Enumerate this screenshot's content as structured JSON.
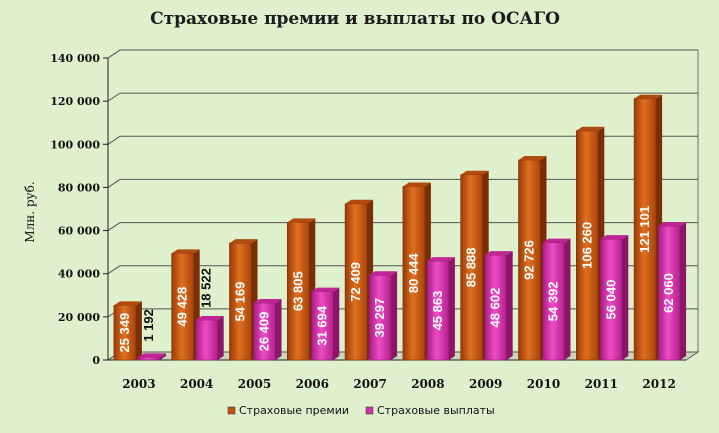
{
  "chart_data": {
    "type": "bar",
    "title": "Страховые премии и выплаты по ОСАГО",
    "ylabel": "Млн. руб.",
    "xlabel": "",
    "categories": [
      "2003",
      "2004",
      "2005",
      "2006",
      "2007",
      "2008",
      "2009",
      "2010",
      "2011",
      "2012"
    ],
    "series": [
      {
        "name": "Страховые премии",
        "color": "#c4520f",
        "values": [
          25349,
          49428,
          54169,
          63805,
          72409,
          80444,
          85888,
          92726,
          106260,
          121101
        ],
        "labels": [
          "25 349",
          "49 428",
          "54 169",
          "63 805",
          "72 409",
          "80 444",
          "85 888",
          "92 726",
          "106 260",
          "121 101"
        ]
      },
      {
        "name": "Страховые выплаты",
        "color": "#d42fa8",
        "values": [
          1192,
          18522,
          26409,
          31694,
          39297,
          45863,
          48602,
          54392,
          56040,
          62060
        ],
        "labels": [
          "1 192",
          "18 522",
          "26 409",
          "31 694",
          "39 297",
          "45 863",
          "48 602",
          "54 392",
          "56 040",
          "62 060"
        ]
      }
    ],
    "ylim": [
      0,
      140000
    ],
    "yticks": [
      0,
      20000,
      40000,
      60000,
      80000,
      100000,
      120000,
      140000
    ],
    "ytick_labels": [
      "0",
      "20 000",
      "40 000",
      "60 000",
      "80 000",
      "100 000",
      "120 000",
      "140 000"
    ],
    "grid": true,
    "legend_position": "bottom-center"
  }
}
